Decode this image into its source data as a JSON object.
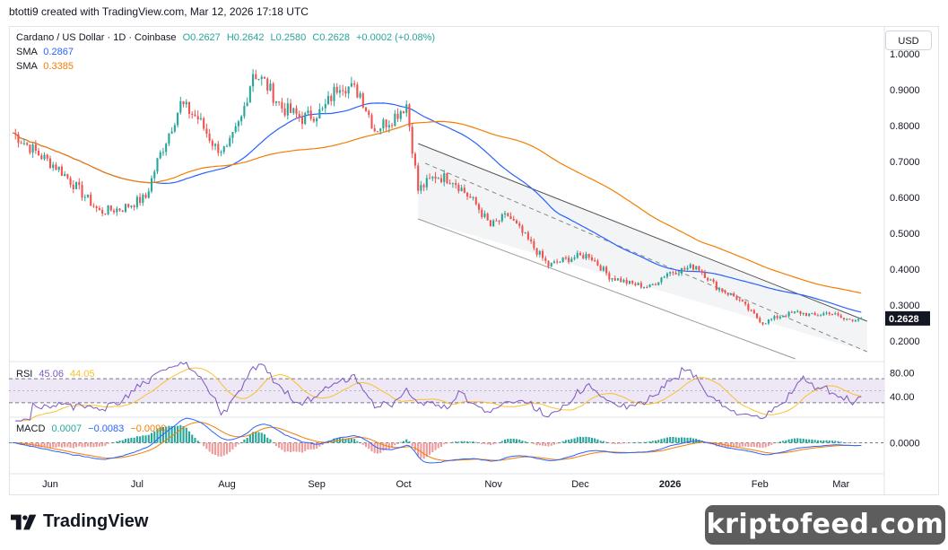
{
  "header": {
    "created_by": "btotti9 created with TradingView.com, Mar 12, 2026 17:18 UTC"
  },
  "toolbar": {
    "currency_label": "USD"
  },
  "legend": {
    "symbol": "Cardano / US Dollar · 1D · Coinbase",
    "open": "O0.2627",
    "high": "H0.2642",
    "low": "L0.2580",
    "close": "C0.2628",
    "change": "+0.0002 (+0.08%)",
    "sma_fast_label": "SMA",
    "sma_fast_value": "0.2867",
    "sma_slow_label": "SMA",
    "sma_slow_value": "0.3385",
    "rsi_label": "RSI",
    "rsi_value": "45.06",
    "rsi_ma_value": "44.05",
    "macd_label": "MACD",
    "macd_hist": "0.0007",
    "macd_line": "−0.0083",
    "macd_signal": "−0.0090"
  },
  "colors": {
    "up": "#26a69a",
    "down": "#ef5350",
    "sma_fast": "#2962ff",
    "sma_slow": "#f57c00",
    "rsi": "#7e57c2",
    "rsi_ma": "#fbc02d",
    "channel": "#f2f4f6",
    "price_tag": "#131722"
  },
  "branding": {
    "tv_logo_text": "TradingView",
    "watermark": "kriptofeed.com"
  },
  "chart_data": {
    "type": "candlestick",
    "title": "Cardano / US Dollar · 1D · Coinbase",
    "y_axis_ticks": [
      "1.0000",
      "0.9000",
      "0.8000",
      "0.7000",
      "0.6000",
      "0.5000",
      "0.4000",
      "0.3000",
      "0.2000"
    ],
    "last_price_label": "0.2628",
    "x_axis_ticks": [
      "Jun",
      "Jul",
      "Aug",
      "Sep",
      "Oct",
      "Nov",
      "Dec",
      "2026",
      "Feb",
      "Mar"
    ],
    "ylim": [
      0.15,
      1.05
    ],
    "close_anchors": [
      [
        "2025-05-23",
        0.78
      ],
      [
        "2025-06-01",
        0.72
      ],
      [
        "2025-06-08",
        0.68
      ],
      [
        "2025-06-15",
        0.62
      ],
      [
        "2025-06-22",
        0.56
      ],
      [
        "2025-06-30",
        0.57
      ],
      [
        "2025-07-08",
        0.6
      ],
      [
        "2025-07-12",
        0.7
      ],
      [
        "2025-07-20",
        0.86
      ],
      [
        "2025-07-26",
        0.82
      ],
      [
        "2025-08-01",
        0.74
      ],
      [
        "2025-08-05",
        0.73
      ],
      [
        "2025-08-10",
        0.82
      ],
      [
        "2025-08-14",
        0.95
      ],
      [
        "2025-08-18",
        0.92
      ],
      [
        "2025-08-24",
        0.85
      ],
      [
        "2025-08-31",
        0.82
      ],
      [
        "2025-09-07",
        0.84
      ],
      [
        "2025-09-13",
        0.92
      ],
      [
        "2025-09-20",
        0.89
      ],
      [
        "2025-09-25",
        0.79
      ],
      [
        "2025-10-01",
        0.82
      ],
      [
        "2025-10-06",
        0.86
      ],
      [
        "2025-10-10",
        0.62
      ],
      [
        "2025-10-16",
        0.66
      ],
      [
        "2025-10-22",
        0.65
      ],
      [
        "2025-10-30",
        0.58
      ],
      [
        "2025-11-04",
        0.52
      ],
      [
        "2025-11-10",
        0.55
      ],
      [
        "2025-11-17",
        0.48
      ],
      [
        "2025-11-24",
        0.41
      ],
      [
        "2025-12-01",
        0.43
      ],
      [
        "2025-12-08",
        0.44
      ],
      [
        "2025-12-15",
        0.38
      ],
      [
        "2025-12-22",
        0.36
      ],
      [
        "2025-12-29",
        0.35
      ],
      [
        "2026-01-04",
        0.39
      ],
      [
        "2026-01-10",
        0.4
      ],
      [
        "2026-01-14",
        0.41
      ],
      [
        "2026-01-21",
        0.35
      ],
      [
        "2026-01-28",
        0.32
      ],
      [
        "2026-02-02",
        0.28
      ],
      [
        "2026-02-06",
        0.25
      ],
      [
        "2026-02-12",
        0.27
      ],
      [
        "2026-02-18",
        0.28
      ],
      [
        "2026-02-24",
        0.27
      ],
      [
        "2026-03-01",
        0.28
      ],
      [
        "2026-03-06",
        0.26
      ],
      [
        "2026-03-12",
        0.2628
      ]
    ],
    "series": [
      {
        "name": "SMA",
        "value": 0.2867
      },
      {
        "name": "SMA",
        "value": 0.3385
      }
    ],
    "rsi": {
      "ticks": [
        "80.00",
        "40.00"
      ],
      "bands": [
        70,
        30
      ],
      "last": 45.06,
      "ma_last": 44.05
    },
    "macd": {
      "ticks": [
        "0.0000"
      ],
      "hist": 0.0007,
      "macd": -0.0083,
      "signal": -0.009
    },
    "descending_channel": true,
    "grid": false
  }
}
